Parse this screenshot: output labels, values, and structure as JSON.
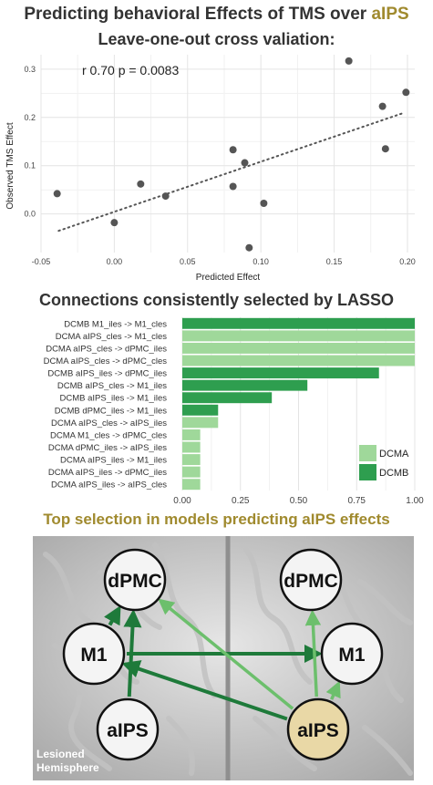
{
  "titles": {
    "main_prefix": "Predicting behavioral Effects of TMS over ",
    "main_highlight": "aIPS",
    "cv": "Leave-one-out cross valiation:",
    "lasso": "Connections consistently selected by LASSO",
    "brain": "Top selection in models predicting aIPS effects"
  },
  "colors": {
    "title_gold": "#a08a2e",
    "dcmb": "#2e9e4f",
    "dcma": "#9fd89a",
    "dot": "#555555",
    "arrow_dark": "#1e7a3a",
    "arrow_light": "#6cbf6c",
    "node_lesioned": "#f0f0f0",
    "node_highlight": "#e9d8a6"
  },
  "chart_data": [
    {
      "type": "scatter",
      "annotation": "r 0.70 p = 0.0083",
      "xlabel": "Predicted  Effect",
      "ylabel": "Observed  TMS  Effect",
      "xlim": [
        -0.05,
        0.205
      ],
      "ylim": [
        -0.08,
        0.33
      ],
      "xticks": [
        "-0.05",
        "0.00",
        "0.05",
        "0.10",
        "0.15",
        "0.20"
      ],
      "xtick_values": [
        -0.05,
        0.0,
        0.05,
        0.1,
        0.15,
        0.2
      ],
      "yticks": [
        "0.0",
        "0.1",
        "0.2",
        "0.3"
      ],
      "ytick_values": [
        0.0,
        0.1,
        0.2,
        0.3
      ],
      "grid": true,
      "points": [
        {
          "x": -0.039,
          "y": 0.042
        },
        {
          "x": 0.0,
          "y": -0.018
        },
        {
          "x": 0.018,
          "y": 0.062
        },
        {
          "x": 0.035,
          "y": 0.037
        },
        {
          "x": 0.081,
          "y": 0.133
        },
        {
          "x": 0.081,
          "y": 0.057
        },
        {
          "x": 0.089,
          "y": 0.106
        },
        {
          "x": 0.092,
          "y": -0.07
        },
        {
          "x": 0.102,
          "y": 0.022
        },
        {
          "x": 0.16,
          "y": 0.317
        },
        {
          "x": 0.183,
          "y": 0.223
        },
        {
          "x": 0.185,
          "y": 0.135
        },
        {
          "x": 0.199,
          "y": 0.252
        }
      ],
      "trend": {
        "x": [
          -0.038,
          0.198
        ],
        "y": [
          -0.035,
          0.21
        ]
      }
    },
    {
      "type": "bar",
      "orientation": "horizontal",
      "categories": [
        "DCMB M1_iles -> M1_cles",
        "DCMA aIPS_cles -> M1_cles",
        "DCMA aIPS_cles -> dPMC_iles",
        "DCMA aIPS_cles -> dPMC_cles",
        "DCMB aIPS_iles -> dPMC_iles",
        "DCMB aIPS_cles -> M1_iles",
        "DCMB aIPS_iles -> M1_iles",
        "DCMB dPMC_iles -> M1_iles",
        "DCMA aIPS_cles -> aIPS_iles",
        "DCMA M1_cles -> dPMC_cles",
        "DCMA dPMC_iles -> aIPS_iles",
        "DCMA aIPS_iles -> M1_iles",
        "DCMA aIPS_iles -> dPMC_iles",
        "DCMA aIPS_iles -> aIPS_cles"
      ],
      "values": [
        1.0,
        1.0,
        1.0,
        1.0,
        0.846,
        0.538,
        0.385,
        0.154,
        0.154,
        0.077,
        0.077,
        0.077,
        0.077,
        0.077
      ],
      "groups": [
        "DCMB",
        "DCMA",
        "DCMA",
        "DCMA",
        "DCMB",
        "DCMB",
        "DCMB",
        "DCMB",
        "DCMA",
        "DCMA",
        "DCMA",
        "DCMA",
        "DCMA",
        "DCMA"
      ],
      "xlim": [
        0,
        1.0
      ],
      "xticks": [
        "0.00",
        "0.25",
        "0.50",
        "0.75",
        "1.00"
      ],
      "xtick_values": [
        0.0,
        0.25,
        0.5,
        0.75,
        1.0
      ],
      "legend": [
        {
          "name": "DCMA"
        },
        {
          "name": "DCMB"
        }
      ],
      "legend_position": "bottom-right",
      "grid": true
    }
  ],
  "diagram": {
    "nodes": {
      "left_dpmc": "dPMC",
      "left_m1": "M1",
      "left_aips": "aIPS",
      "right_dpmc": "dPMC",
      "right_m1": "M1",
      "right_aips": "aIPS"
    },
    "caption_line1": "Lesioned",
    "caption_line2": "Hemisphere",
    "edges": [
      {
        "from": "left_aips",
        "to": "left_dpmc",
        "shade": "dark"
      },
      {
        "from": "left_m1",
        "to": "left_dpmc",
        "shade": "dark"
      },
      {
        "from": "left_m1",
        "to": "right_m1",
        "shade": "dark"
      },
      {
        "from": "right_aips",
        "to": "left_m1",
        "shade": "dark"
      },
      {
        "from": "right_aips",
        "to": "left_dpmc",
        "shade": "light"
      },
      {
        "from": "right_aips",
        "to": "right_dpmc",
        "shade": "light"
      },
      {
        "from": "right_aips",
        "to": "right_m1",
        "shade": "light"
      }
    ]
  }
}
